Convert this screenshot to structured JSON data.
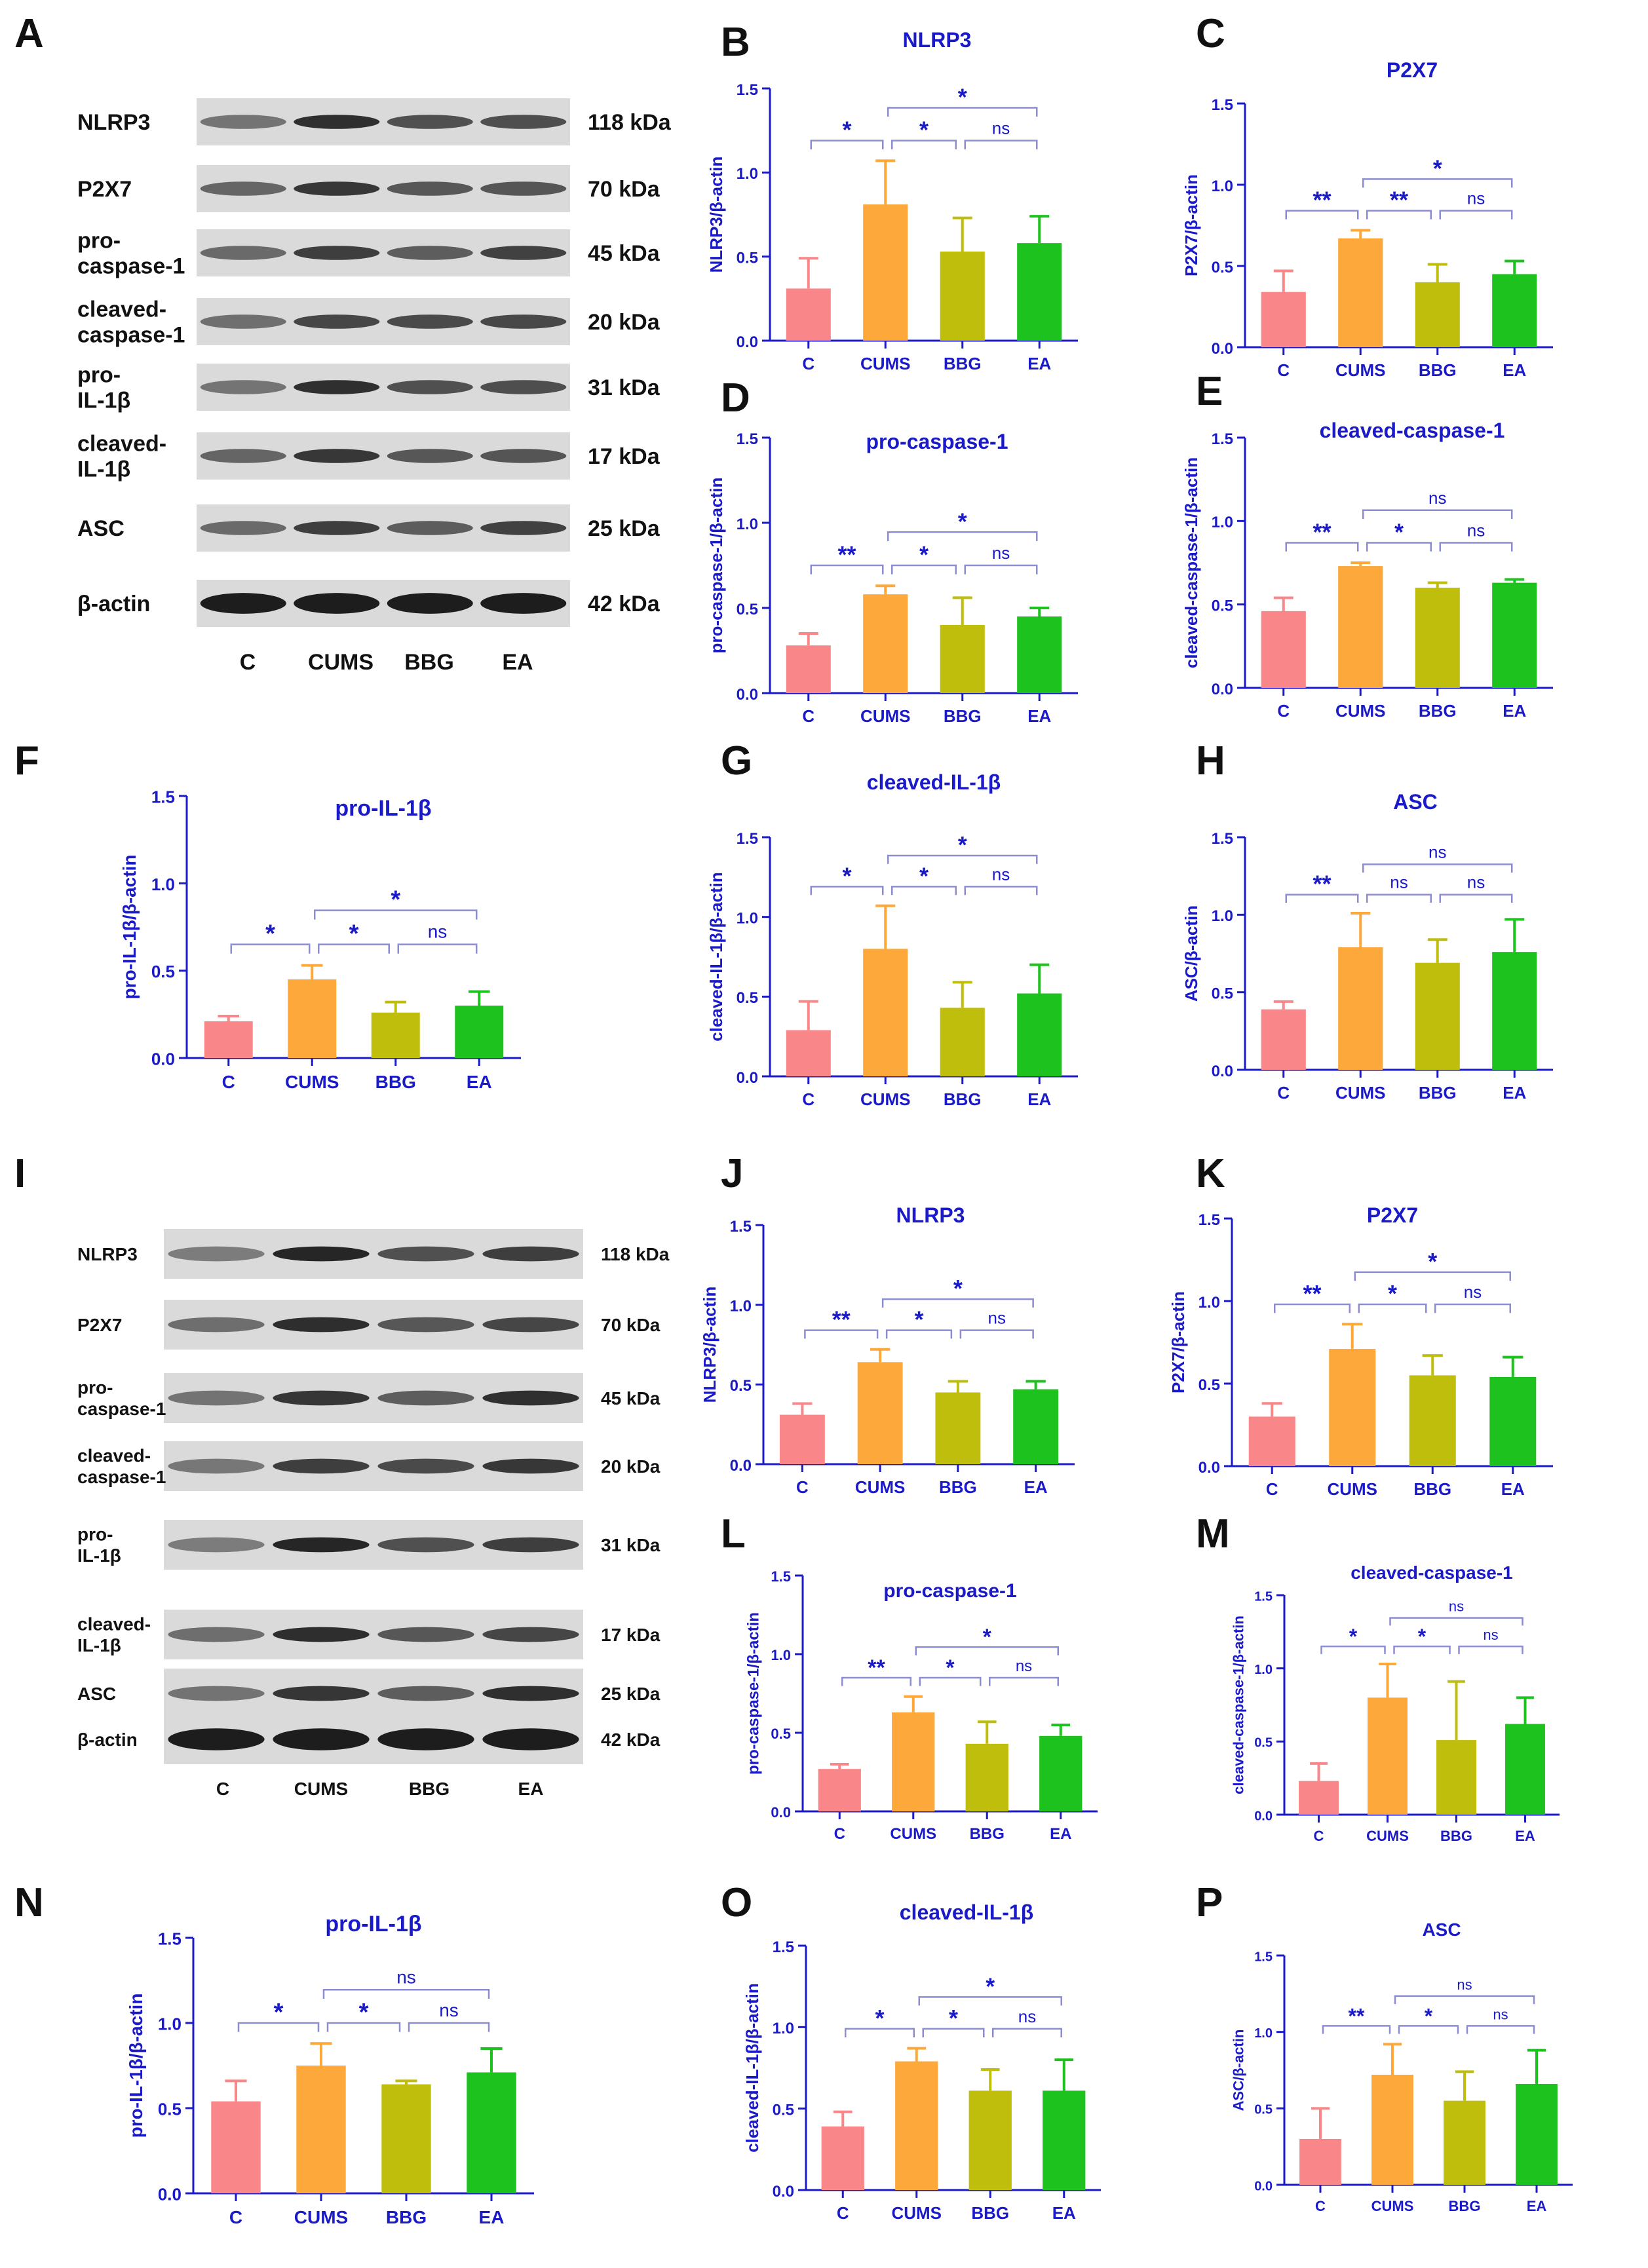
{
  "colors": {
    "C": "#f98688",
    "CUMS": "#fca83a",
    "BBG": "#bfbe0c",
    "EA": "#1ec21e",
    "axis": "#1a1ac8",
    "bracket": "#8c8cd0",
    "text": "#111111"
  },
  "westerns": [
    {
      "panel": "A",
      "proteins": [
        "NLRP3",
        "P2X7",
        "pro-\ncaspase-1",
        "cleaved-\ncaspase-1",
        "pro-\nIL-1β",
        "cleaved-\nIL-1β",
        "ASC",
        "β-actin"
      ],
      "kda": [
        "118 kDa",
        "70 kDa",
        "45 kDa",
        "20 kDa",
        "31 kDa",
        "17 kDa",
        "25 kDa",
        "42 kDa"
      ],
      "lanes": [
        "C",
        "CUMS",
        "BBG",
        "EA"
      ]
    },
    {
      "panel": "I",
      "proteins": [
        "NLRP3",
        "P2X7",
        "pro-\ncaspase-1",
        "cleaved-\ncaspase-1",
        "pro-\nIL-1β",
        "cleaved-\nIL-1β",
        "ASC",
        "β-actin"
      ],
      "kda": [
        "118 kDa",
        "70 kDa",
        "45 kDa",
        "20 kDa",
        "31 kDa",
        "17 kDa",
        "25 kDa",
        "42 kDa"
      ],
      "lanes": [
        "C",
        "CUMS",
        "BBG",
        "EA"
      ]
    }
  ],
  "chart_data": [
    {
      "panel": "B",
      "type": "bar",
      "title": "NLRP3",
      "ylabel": "NLRP3/β-actin",
      "categories": [
        "C",
        "CUMS",
        "BBG",
        "EA"
      ],
      "values": [
        0.31,
        0.81,
        0.53,
        0.58
      ],
      "errors": [
        0.18,
        0.26,
        0.2,
        0.16
      ],
      "ylim": [
        0,
        1.5
      ],
      "yticks": [
        "0.0",
        "0.5",
        "1.0",
        "1.5"
      ],
      "sig": [
        {
          "from": 0,
          "to": 1,
          "label": "*"
        },
        {
          "from": 1,
          "to": 2,
          "label": "*"
        },
        {
          "from": 2,
          "to": 3,
          "label": "ns"
        },
        {
          "from": 1,
          "to": 3,
          "label": "*"
        }
      ]
    },
    {
      "panel": "C",
      "type": "bar",
      "title": "P2X7",
      "ylabel": "P2X7/β-actin",
      "categories": [
        "C",
        "CUMS",
        "BBG",
        "EA"
      ],
      "values": [
        0.34,
        0.67,
        0.4,
        0.45
      ],
      "errors": [
        0.13,
        0.05,
        0.11,
        0.08
      ],
      "ylim": [
        0,
        1.5
      ],
      "yticks": [
        "0.0",
        "0.5",
        "1.0",
        "1.5"
      ],
      "sig": [
        {
          "from": 0,
          "to": 1,
          "label": "**"
        },
        {
          "from": 1,
          "to": 2,
          "label": "**"
        },
        {
          "from": 2,
          "to": 3,
          "label": "ns"
        },
        {
          "from": 1,
          "to": 3,
          "label": "*"
        }
      ]
    },
    {
      "panel": "D",
      "type": "bar",
      "title": "pro-caspase-1",
      "ylabel": "pro-caspase-1/β-actin",
      "categories": [
        "C",
        "CUMS",
        "BBG",
        "EA"
      ],
      "values": [
        0.28,
        0.58,
        0.4,
        0.45
      ],
      "errors": [
        0.07,
        0.05,
        0.16,
        0.05
      ],
      "ylim": [
        0,
        1.5
      ],
      "yticks": [
        "0.0",
        "0.5",
        "1.0",
        "1.5"
      ],
      "sig": [
        {
          "from": 0,
          "to": 1,
          "label": "**"
        },
        {
          "from": 1,
          "to": 2,
          "label": "*"
        },
        {
          "from": 2,
          "to": 3,
          "label": "ns"
        },
        {
          "from": 1,
          "to": 3,
          "label": "*"
        }
      ]
    },
    {
      "panel": "E",
      "type": "bar",
      "title": "cleaved-caspase-1",
      "ylabel": "cleaved-caspase-1/β-actin",
      "categories": [
        "C",
        "CUMS",
        "BBG",
        "EA"
      ],
      "values": [
        0.46,
        0.73,
        0.6,
        0.63
      ],
      "errors": [
        0.08,
        0.02,
        0.03,
        0.02
      ],
      "ylim": [
        0,
        1.5
      ],
      "yticks": [
        "0.0",
        "0.5",
        "1.0",
        "1.5"
      ],
      "sig": [
        {
          "from": 0,
          "to": 1,
          "label": "**"
        },
        {
          "from": 1,
          "to": 2,
          "label": "*"
        },
        {
          "from": 2,
          "to": 3,
          "label": "ns"
        },
        {
          "from": 1,
          "to": 3,
          "label": "ns"
        }
      ]
    },
    {
      "panel": "F",
      "type": "bar",
      "title": "pro-IL-1β",
      "ylabel": "pro-IL-1β/β-actin",
      "categories": [
        "C",
        "CUMS",
        "BBG",
        "EA"
      ],
      "values": [
        0.21,
        0.45,
        0.26,
        0.3
      ],
      "errors": [
        0.03,
        0.08,
        0.06,
        0.08
      ],
      "ylim": [
        0,
        1.5
      ],
      "yticks": [
        "0.0",
        "0.5",
        "1.0",
        "1.5"
      ],
      "sig": [
        {
          "from": 0,
          "to": 1,
          "label": "*"
        },
        {
          "from": 1,
          "to": 2,
          "label": "*"
        },
        {
          "from": 2,
          "to": 3,
          "label": "ns"
        },
        {
          "from": 1,
          "to": 3,
          "label": "*"
        }
      ]
    },
    {
      "panel": "G",
      "type": "bar",
      "title": "cleaved-IL-1β",
      "ylabel": "cleaved-IL-1β/β-actin",
      "categories": [
        "C",
        "CUMS",
        "BBG",
        "EA"
      ],
      "values": [
        0.29,
        0.8,
        0.43,
        0.52
      ],
      "errors": [
        0.18,
        0.27,
        0.16,
        0.18
      ],
      "ylim": [
        0,
        1.5
      ],
      "yticks": [
        "0.0",
        "0.5",
        "1.0",
        "1.5"
      ],
      "sig": [
        {
          "from": 0,
          "to": 1,
          "label": "*"
        },
        {
          "from": 1,
          "to": 2,
          "label": "*"
        },
        {
          "from": 2,
          "to": 3,
          "label": "ns"
        },
        {
          "from": 1,
          "to": 3,
          "label": "*"
        }
      ]
    },
    {
      "panel": "H",
      "type": "bar",
      "title": "ASC",
      "ylabel": "ASC/β-actin",
      "categories": [
        "C",
        "CUMS",
        "BBG",
        "EA"
      ],
      "values": [
        0.39,
        0.79,
        0.69,
        0.76
      ],
      "errors": [
        0.05,
        0.22,
        0.15,
        0.21
      ],
      "ylim": [
        0,
        1.5
      ],
      "yticks": [
        "0.0",
        "0.5",
        "1.0",
        "1.5"
      ],
      "sig": [
        {
          "from": 0,
          "to": 1,
          "label": "**"
        },
        {
          "from": 1,
          "to": 2,
          "label": "ns"
        },
        {
          "from": 2,
          "to": 3,
          "label": "ns"
        },
        {
          "from": 1,
          "to": 3,
          "label": "ns"
        }
      ]
    },
    {
      "panel": "J",
      "type": "bar",
      "title": "NLRP3",
      "ylabel": "NLRP3/β-actin",
      "categories": [
        "C",
        "CUMS",
        "BBG",
        "EA"
      ],
      "values": [
        0.31,
        0.64,
        0.45,
        0.47
      ],
      "errors": [
        0.07,
        0.08,
        0.07,
        0.05
      ],
      "ylim": [
        0,
        1.5
      ],
      "yticks": [
        "0.0",
        "0.5",
        "1.0",
        "1.5"
      ],
      "sig": [
        {
          "from": 0,
          "to": 1,
          "label": "**"
        },
        {
          "from": 1,
          "to": 2,
          "label": "*"
        },
        {
          "from": 2,
          "to": 3,
          "label": "ns"
        },
        {
          "from": 1,
          "to": 3,
          "label": "*"
        }
      ]
    },
    {
      "panel": "K",
      "type": "bar",
      "title": "P2X7",
      "ylabel": "P2X7/β-actin",
      "categories": [
        "C",
        "CUMS",
        "BBG",
        "EA"
      ],
      "values": [
        0.3,
        0.71,
        0.55,
        0.54
      ],
      "errors": [
        0.08,
        0.15,
        0.12,
        0.12
      ],
      "ylim": [
        0,
        1.5
      ],
      "yticks": [
        "0.0",
        "0.5",
        "1.0",
        "1.5"
      ],
      "sig": [
        {
          "from": 0,
          "to": 1,
          "label": "**"
        },
        {
          "from": 1,
          "to": 2,
          "label": "*"
        },
        {
          "from": 2,
          "to": 3,
          "label": "ns"
        },
        {
          "from": 1,
          "to": 3,
          "label": "*"
        }
      ]
    },
    {
      "panel": "L",
      "type": "bar",
      "title": "pro-caspase-1",
      "ylabel": "pro-caspase-1/β-actin",
      "categories": [
        "C",
        "CUMS",
        "BBG",
        "EA"
      ],
      "values": [
        0.27,
        0.63,
        0.43,
        0.48
      ],
      "errors": [
        0.03,
        0.1,
        0.14,
        0.07
      ],
      "ylim": [
        0,
        1.5
      ],
      "yticks": [
        "0.0",
        "0.5",
        "1.0",
        "1.5"
      ],
      "sig": [
        {
          "from": 0,
          "to": 1,
          "label": "**"
        },
        {
          "from": 1,
          "to": 2,
          "label": "*"
        },
        {
          "from": 2,
          "to": 3,
          "label": "ns"
        },
        {
          "from": 1,
          "to": 3,
          "label": "*"
        }
      ]
    },
    {
      "panel": "M",
      "type": "bar",
      "title": "cleaved-caspase-1",
      "ylabel": "cleaved-caspase-1/β-actin",
      "categories": [
        "C",
        "CUMS",
        "BBG",
        "EA"
      ],
      "values": [
        0.23,
        0.8,
        0.51,
        0.62
      ],
      "errors": [
        0.12,
        0.23,
        0.4,
        0.18
      ],
      "ylim": [
        0,
        1.5
      ],
      "yticks": [
        "0.0",
        "0.5",
        "1.0",
        "1.5"
      ],
      "sig": [
        {
          "from": 0,
          "to": 1,
          "label": "*"
        },
        {
          "from": 1,
          "to": 2,
          "label": "*"
        },
        {
          "from": 2,
          "to": 3,
          "label": "ns"
        },
        {
          "from": 1,
          "to": 3,
          "label": "ns"
        }
      ]
    },
    {
      "panel": "N",
      "type": "bar",
      "title": "pro-IL-1β",
      "ylabel": "pro-IL-1β/β-actin",
      "categories": [
        "C",
        "CUMS",
        "BBG",
        "EA"
      ],
      "values": [
        0.54,
        0.75,
        0.64,
        0.71
      ],
      "errors": [
        0.12,
        0.13,
        0.02,
        0.14
      ],
      "ylim": [
        0,
        1.5
      ],
      "yticks": [
        "0.0",
        "0.5",
        "1.0",
        "1.5"
      ],
      "sig": [
        {
          "from": 0,
          "to": 1,
          "label": "*"
        },
        {
          "from": 1,
          "to": 2,
          "label": "*"
        },
        {
          "from": 2,
          "to": 3,
          "label": "ns"
        },
        {
          "from": 1,
          "to": 3,
          "label": "ns"
        }
      ]
    },
    {
      "panel": "O",
      "type": "bar",
      "title": "cleaved-IL-1β",
      "ylabel": "cleaved-IL-1β/β-actin",
      "categories": [
        "C",
        "CUMS",
        "BBG",
        "EA"
      ],
      "values": [
        0.39,
        0.79,
        0.61,
        0.61
      ],
      "errors": [
        0.09,
        0.08,
        0.13,
        0.19
      ],
      "ylim": [
        0,
        1.5
      ],
      "yticks": [
        "0.0",
        "0.5",
        "1.0",
        "1.5"
      ],
      "sig": [
        {
          "from": 0,
          "to": 1,
          "label": "*"
        },
        {
          "from": 1,
          "to": 2,
          "label": "*"
        },
        {
          "from": 2,
          "to": 3,
          "label": "ns"
        },
        {
          "from": 1,
          "to": 3,
          "label": "*"
        }
      ]
    },
    {
      "panel": "P",
      "type": "bar",
      "title": "ASC",
      "ylabel": "ASC/β-actin",
      "categories": [
        "C",
        "CUMS",
        "BBG",
        "EA"
      ],
      "values": [
        0.3,
        0.72,
        0.55,
        0.66
      ],
      "errors": [
        0.2,
        0.2,
        0.19,
        0.22
      ],
      "ylim": [
        0,
        1.5
      ],
      "yticks": [
        "0.0",
        "0.5",
        "1.0",
        "1.5"
      ],
      "sig": [
        {
          "from": 0,
          "to": 1,
          "label": "**"
        },
        {
          "from": 1,
          "to": 2,
          "label": "*"
        },
        {
          "from": 2,
          "to": 3,
          "label": "ns"
        },
        {
          "from": 1,
          "to": 3,
          "label": "ns"
        }
      ]
    }
  ]
}
